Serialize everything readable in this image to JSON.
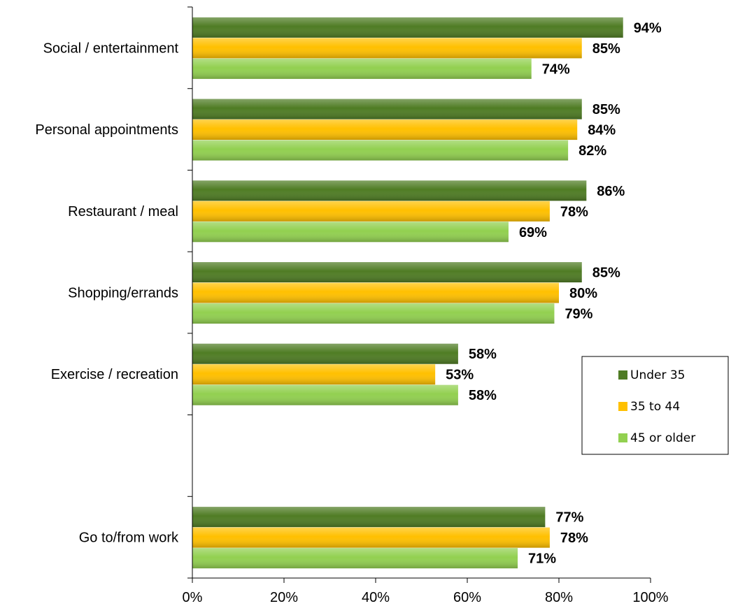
{
  "chart_data": {
    "type": "bar",
    "orientation": "horizontal",
    "categories": [
      "Social / entertainment",
      "Personal appointments",
      "Restaurant / meal",
      "Shopping/errands",
      "Exercise / recreation",
      "",
      "Go to/from work"
    ],
    "series": [
      {
        "name": "Under 35",
        "color": "#4f7c24",
        "values": [
          94,
          85,
          86,
          85,
          58,
          null,
          77
        ],
        "labels": [
          "94%",
          "85%",
          "86%",
          "85%",
          "58%",
          "",
          "77%"
        ]
      },
      {
        "name": "35 to 44",
        "color": "#ffc000",
        "values": [
          85,
          84,
          78,
          80,
          53,
          null,
          78
        ],
        "labels": [
          "85%",
          "84%",
          "78%",
          "80%",
          "53%",
          "",
          "78%"
        ]
      },
      {
        "name": "45 or older",
        "color": "#92d050",
        "values": [
          74,
          82,
          69,
          79,
          58,
          null,
          71
        ],
        "labels": [
          "74%",
          "82%",
          "69%",
          "79%",
          "58%",
          "",
          "71%"
        ]
      }
    ],
    "xlim": [
      0,
      100
    ],
    "xticks": [
      0,
      20,
      40,
      60,
      80,
      100
    ],
    "xtick_labels": [
      "0%",
      "20%",
      "40%",
      "60%",
      "80%",
      "100%"
    ],
    "title": "",
    "xlabel": "",
    "ylabel": "",
    "grid": false,
    "legend_position": "right"
  }
}
